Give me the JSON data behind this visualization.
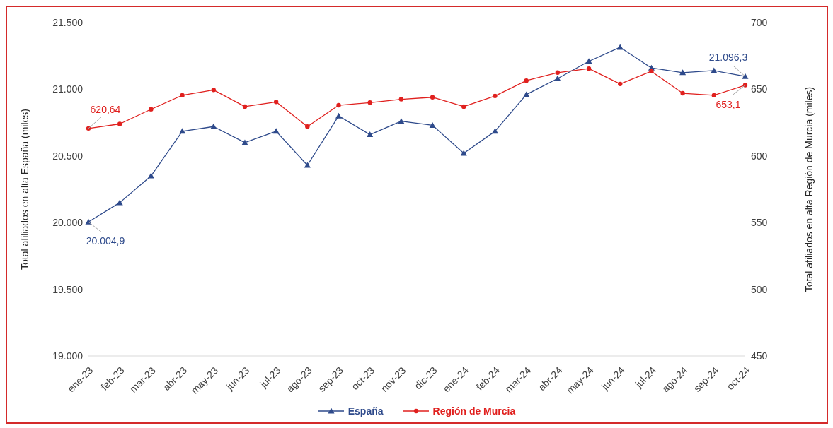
{
  "chart_data": {
    "type": "line",
    "xlabel": null,
    "ylabel": "Total afiliados en alta España (miles)",
    "y2label": "Total afiliados en alta Región de Murcia (miles)",
    "categories": [
      "ene-23",
      "feb-23",
      "mar-23",
      "abr-23",
      "may-23",
      "jun-23",
      "jul-23",
      "ago-23",
      "sep-23",
      "oct-23",
      "nov-23",
      "dic-23",
      "ene-24",
      "feb-24",
      "mar-24",
      "abr-24",
      "may-24",
      "jun-24",
      "jul-24",
      "ago-24",
      "sep-24",
      "oct-24"
    ],
    "series": [
      {
        "name": "España",
        "color": "#2e4a8b",
        "marker": "triangle",
        "values": [
          20004.9,
          20150,
          20350,
          20685,
          20720,
          20600,
          20685,
          20430,
          20800,
          20660,
          20760,
          20730,
          20520,
          20685,
          20960,
          21080,
          21210,
          21315,
          21160,
          21125,
          21140,
          21096.3
        ],
        "value_labels": [
          "20.004,9",
          null,
          null,
          null,
          null,
          null,
          null,
          null,
          null,
          null,
          null,
          null,
          null,
          null,
          null,
          null,
          null,
          null,
          null,
          null,
          null,
          "21.096,3"
        ]
      },
      {
        "name": "Región de Murcia",
        "color": "#e0201e",
        "marker": "circle",
        "axis": "y2",
        "values": [
          620.64,
          624,
          635,
          645.5,
          649.5,
          637,
          640.5,
          622,
          638,
          640,
          642.5,
          644,
          637,
          645,
          656.5,
          662.5,
          665.5,
          654,
          663.5,
          647,
          645.5,
          653.1
        ],
        "value_labels": [
          "620,64",
          null,
          null,
          null,
          null,
          null,
          null,
          null,
          null,
          null,
          null,
          null,
          null,
          null,
          null,
          null,
          null,
          null,
          null,
          null,
          null,
          "653,1"
        ]
      }
    ],
    "ylim": [
      19000,
      21500
    ],
    "yticks": [
      {
        "value": 19000,
        "label": "19.000"
      },
      {
        "value": 19500,
        "label": "19.500"
      },
      {
        "value": 20000,
        "label": "20.000"
      },
      {
        "value": 20500,
        "label": "20.500"
      },
      {
        "value": 21000,
        "label": "21.000"
      },
      {
        "value": 21500,
        "label": "21.500"
      }
    ],
    "y2lim": [
      450,
      700
    ],
    "y2ticks": [
      450,
      500,
      550,
      600,
      650,
      700
    ],
    "legend": "bottom",
    "line_style": "solid"
  }
}
